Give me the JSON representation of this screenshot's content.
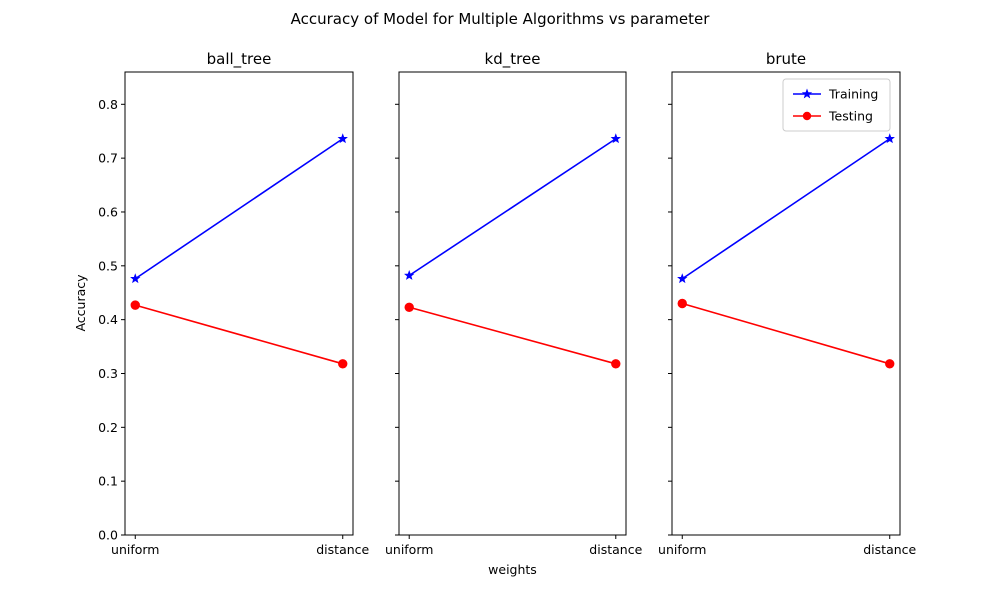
{
  "figure_title": "Accuracy of Model for Multiple Algorithms vs parameter",
  "colors": {
    "training": "#0000ff",
    "testing": "#ff0000"
  },
  "chart_data": [
    {
      "type": "line",
      "title": "ball_tree",
      "categories": [
        "uniform",
        "distance"
      ],
      "xlabel": "",
      "ylabel": "Accuracy",
      "ylim": [
        0,
        0.86
      ],
      "yticks": [
        "0.0",
        "0.1",
        "0.2",
        "0.3",
        "0.4",
        "0.5",
        "0.6",
        "0.7",
        "0.8"
      ],
      "series": [
        {
          "name": "Training",
          "values": [
            0.476,
            0.736
          ],
          "marker": "star"
        },
        {
          "name": "Testing",
          "values": [
            0.427,
            0.318
          ],
          "marker": "circle"
        }
      ],
      "legend": null
    },
    {
      "type": "line",
      "title": "kd_tree",
      "categories": [
        "uniform",
        "distance"
      ],
      "xlabel": "weights",
      "ylabel": "",
      "ylim": [
        0,
        0.86
      ],
      "series": [
        {
          "name": "Training",
          "values": [
            0.482,
            0.736
          ],
          "marker": "star"
        },
        {
          "name": "Testing",
          "values": [
            0.423,
            0.318
          ],
          "marker": "circle"
        }
      ],
      "legend": null
    },
    {
      "type": "line",
      "title": "brute",
      "categories": [
        "uniform",
        "distance"
      ],
      "xlabel": "",
      "ylabel": "",
      "ylim": [
        0,
        0.86
      ],
      "series": [
        {
          "name": "Training",
          "values": [
            0.476,
            0.736
          ],
          "marker": "star"
        },
        {
          "name": "Testing",
          "values": [
            0.43,
            0.318
          ],
          "marker": "circle"
        }
      ],
      "legend": "upper right"
    }
  ]
}
